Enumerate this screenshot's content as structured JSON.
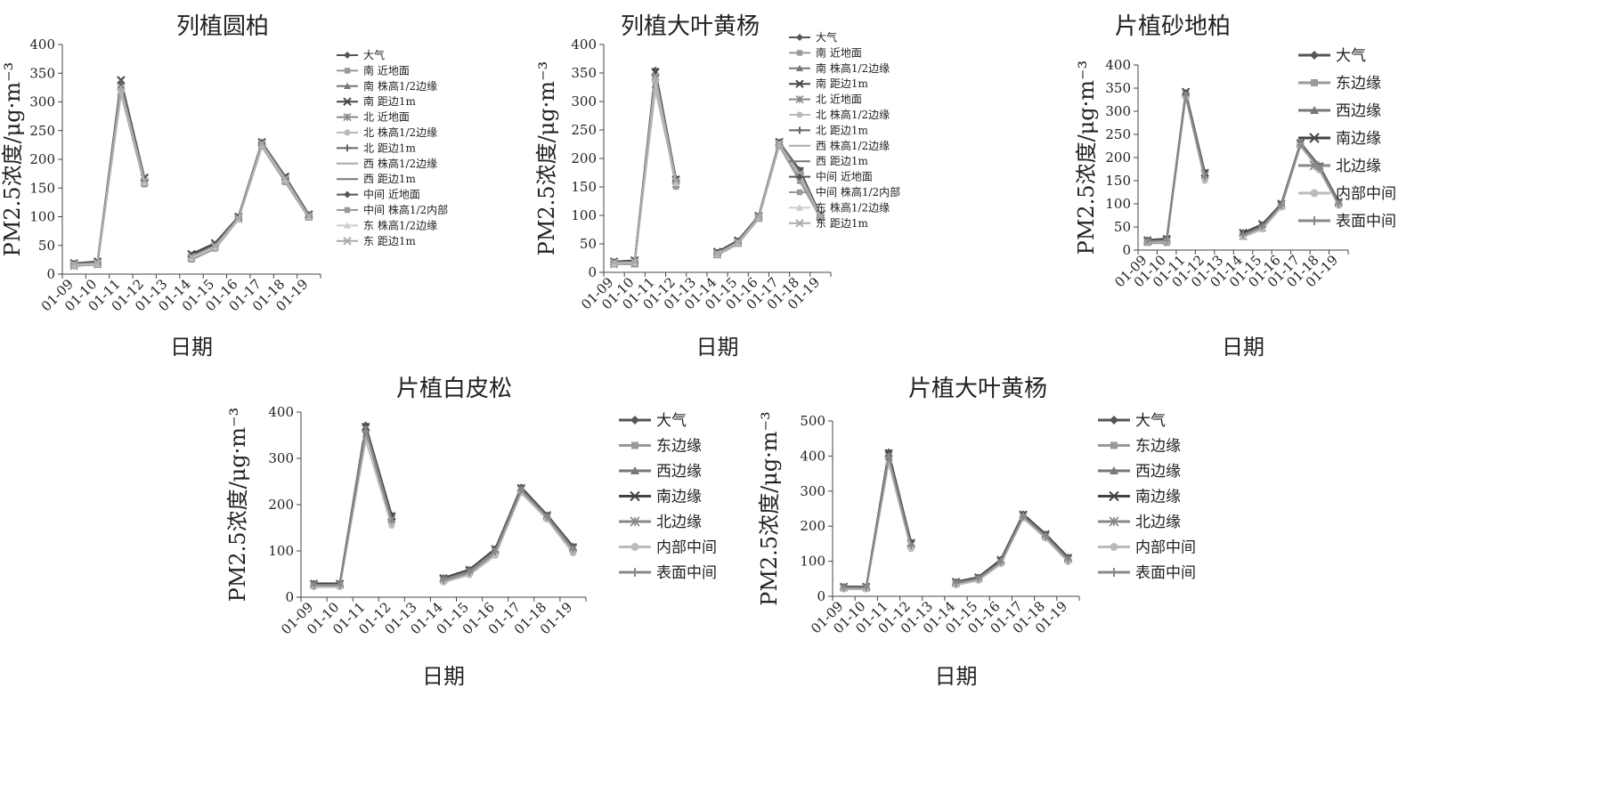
{
  "chart_data": [
    {
      "type": "line",
      "title": "列植圆柏",
      "xlabel": "日期",
      "ylabel": "PM2.5浓度/μg·m⁻³",
      "ylim": [
        0,
        400
      ],
      "yticks": [
        0,
        50,
        100,
        150,
        200,
        250,
        300,
        350,
        400
      ],
      "categories": [
        "01-09",
        "01-10",
        "01-11",
        "01-12",
        "01-13",
        "01-14",
        "01-15",
        "01-16",
        "01-17",
        "01-18",
        "01-19"
      ],
      "legend_position": "right",
      "legend_size": "small",
      "series": [
        {
          "name": "大气",
          "color": "#555555",
          "marker": "diamond",
          "values": [
            18,
            20,
            330,
            165,
            null,
            33,
            52,
            98,
            228,
            168,
            103
          ]
        },
        {
          "name": "南 近地面",
          "color": "#999999",
          "marker": "square",
          "values": [
            15,
            16,
            320,
            158,
            null,
            27,
            45,
            96,
            225,
            162,
            100
          ]
        },
        {
          "name": "南 株高1/2边缘",
          "color": "#777777",
          "marker": "triangle",
          "values": [
            17,
            19,
            328,
            164,
            null,
            32,
            50,
            99,
            229,
            167,
            103
          ]
        },
        {
          "name": "南 距边1m",
          "color": "#444444",
          "marker": "x",
          "values": [
            19,
            22,
            338,
            168,
            null,
            35,
            54,
            100,
            230,
            170,
            104
          ]
        },
        {
          "name": "北 近地面",
          "color": "#888888",
          "marker": "star",
          "values": [
            14,
            17,
            318,
            160,
            null,
            28,
            48,
            96,
            224,
            163,
            100
          ]
        },
        {
          "name": "北 株高1/2边缘",
          "color": "#bbbbbb",
          "marker": "circle",
          "values": [
            16,
            18,
            324,
            162,
            null,
            30,
            49,
            97,
            227,
            166,
            102
          ]
        },
        {
          "name": "北 距边1m",
          "color": "#666666",
          "marker": "plus",
          "values": [
            18,
            20,
            332,
            166,
            null,
            32,
            51,
            99,
            229,
            168,
            103
          ]
        },
        {
          "name": "西 株高1/2边缘",
          "color": "#aaaaaa",
          "marker": "none",
          "values": [
            15,
            17,
            315,
            157,
            null,
            26,
            46,
            95,
            223,
            161,
            99
          ]
        },
        {
          "name": "西 距边1m",
          "color": "#777777",
          "marker": "none",
          "values": [
            16,
            18,
            322,
            161,
            null,
            29,
            48,
            97,
            226,
            165,
            101
          ]
        },
        {
          "name": "中间 近地面",
          "color": "#555555",
          "marker": "diamond",
          "values": [
            17,
            19,
            326,
            163,
            null,
            31,
            50,
            98,
            228,
            167,
            102
          ]
        },
        {
          "name": "中间 株高1/2内部",
          "color": "#999999",
          "marker": "square",
          "values": [
            15,
            17,
            316,
            156,
            null,
            25,
            44,
            95,
            222,
            160,
            98
          ]
        },
        {
          "name": "东 株高1/2边缘",
          "color": "#cccccc",
          "marker": "triangle",
          "values": [
            16,
            18,
            321,
            160,
            null,
            28,
            47,
            96,
            225,
            164,
            100
          ]
        },
        {
          "name": "东 距边1m",
          "color": "#aaaaaa",
          "marker": "x",
          "values": [
            17,
            19,
            325,
            162,
            null,
            30,
            49,
            97,
            227,
            166,
            101
          ]
        }
      ]
    },
    {
      "type": "line",
      "title": "列植大叶黄杨",
      "xlabel": "日期",
      "ylabel": "PM2.5浓度/μg·m⁻³",
      "ylim": [
        0,
        400
      ],
      "yticks": [
        0,
        50,
        100,
        150,
        200,
        250,
        300,
        350,
        400
      ],
      "categories": [
        "01-09",
        "01-10",
        "01-11",
        "01-12",
        "01-13",
        "01-14",
        "01-15",
        "01-16",
        "01-17",
        "01-18",
        "01-19"
      ],
      "legend_position": "right",
      "legend_size": "small",
      "series": [
        {
          "name": "大气",
          "color": "#555555",
          "marker": "diamond",
          "values": [
            18,
            20,
            355,
            165,
            null,
            35,
            55,
            98,
            228,
            180,
            100
          ]
        },
        {
          "name": "南 近地面",
          "color": "#999999",
          "marker": "square",
          "values": [
            15,
            14,
            340,
            150,
            null,
            30,
            50,
            94,
            222,
            160,
            95
          ]
        },
        {
          "name": "南 株高1/2边缘",
          "color": "#777777",
          "marker": "triangle",
          "values": [
            17,
            18,
            350,
            160,
            null,
            33,
            53,
            97,
            227,
            175,
            99
          ]
        },
        {
          "name": "南 距边1m",
          "color": "#444444",
          "marker": "x",
          "values": [
            19,
            21,
            352,
            163,
            null,
            36,
            56,
            99,
            229,
            178,
            101
          ]
        },
        {
          "name": "北 近地面",
          "color": "#888888",
          "marker": "star",
          "values": [
            14,
            15,
            330,
            155,
            null,
            31,
            51,
            95,
            224,
            170,
            96
          ]
        },
        {
          "name": "北 株高1/2边缘",
          "color": "#bbbbbb",
          "marker": "circle",
          "values": [
            16,
            17,
            320,
            158,
            null,
            32,
            52,
            96,
            225,
            172,
            97
          ]
        },
        {
          "name": "北 距边1m",
          "color": "#666666",
          "marker": "plus",
          "values": [
            18,
            19,
            345,
            162,
            null,
            34,
            54,
            98,
            228,
            177,
            99
          ]
        },
        {
          "name": "西 株高1/2边缘",
          "color": "#aaaaaa",
          "marker": "none",
          "values": [
            15,
            16,
            335,
            156,
            null,
            30,
            50,
            95,
            223,
            168,
            96
          ]
        },
        {
          "name": "西 距边1m",
          "color": "#777777",
          "marker": "none",
          "values": [
            16,
            18,
            342,
            159,
            null,
            33,
            53,
            97,
            226,
            174,
            98
          ]
        },
        {
          "name": "中间 近地面",
          "color": "#555555",
          "marker": "diamond",
          "values": [
            17,
            19,
            348,
            161,
            null,
            34,
            54,
            98,
            227,
            176,
            99
          ]
        },
        {
          "name": "中间 株高1/2内部",
          "color": "#999999",
          "marker": "square",
          "values": [
            15,
            16,
            336,
            155,
            null,
            31,
            51,
            95,
            224,
            169,
            96
          ]
        },
        {
          "name": "东 株高1/2边缘",
          "color": "#cccccc",
          "marker": "triangle",
          "values": [
            16,
            17,
            338,
            157,
            null,
            32,
            52,
            96,
            225,
            171,
            97
          ]
        },
        {
          "name": "东 距边1m",
          "color": "#aaaaaa",
          "marker": "x",
          "values": [
            17,
            18,
            344,
            160,
            null,
            33,
            53,
            97,
            226,
            173,
            98
          ]
        }
      ]
    },
    {
      "type": "line",
      "title": "片植砂地柏",
      "xlabel": "日期",
      "ylabel": "PM2.5浓度/μg·m⁻³",
      "ylim": [
        0,
        400
      ],
      "yticks": [
        0,
        50,
        100,
        150,
        200,
        250,
        300,
        350,
        400
      ],
      "categories": [
        "01-09",
        "01-10",
        "01-11",
        "01-12",
        "01-13",
        "01-14",
        "01-15",
        "01-16",
        "01-17",
        "01-18",
        "01-19"
      ],
      "legend_position": "right",
      "legend_size": "large",
      "series": [
        {
          "name": "大气",
          "color": "#555555",
          "marker": "diamond",
          "values": [
            22,
            25,
            340,
            168,
            null,
            38,
            55,
            100,
            232,
            182,
            105
          ]
        },
        {
          "name": "东边缘",
          "color": "#999999",
          "marker": "square",
          "values": [
            15,
            15,
            335,
            160,
            null,
            32,
            50,
            95,
            228,
            175,
            100
          ]
        },
        {
          "name": "西边缘",
          "color": "#777777",
          "marker": "triangle",
          "values": [
            20,
            22,
            338,
            165,
            null,
            36,
            54,
            98,
            230,
            180,
            103
          ]
        },
        {
          "name": "南边缘",
          "color": "#444444",
          "marker": "x",
          "values": [
            21,
            24,
            342,
            167,
            null,
            37,
            56,
            100,
            231,
            181,
            104
          ]
        },
        {
          "name": "北边缘",
          "color": "#888888",
          "marker": "star",
          "values": [
            18,
            20,
            336,
            162,
            null,
            30,
            48,
            96,
            229,
            178,
            101
          ]
        },
        {
          "name": "内部中间",
          "color": "#bbbbbb",
          "marker": "circle",
          "values": [
            17,
            19,
            330,
            150,
            null,
            28,
            45,
            92,
            225,
            172,
            96
          ]
        },
        {
          "name": "表面中间",
          "color": "#888888",
          "marker": "plus",
          "values": [
            19,
            21,
            334,
            158,
            null,
            33,
            51,
            97,
            228,
            177,
            100
          ]
        }
      ]
    },
    {
      "type": "line",
      "title": "片植白皮松",
      "xlabel": "日期",
      "ylabel": "PM2.5浓度/μg·m⁻³",
      "ylim": [
        0,
        400
      ],
      "yticks": [
        0,
        100,
        200,
        300,
        400
      ],
      "categories": [
        "01-09",
        "01-10",
        "01-11",
        "01-12",
        "01-13",
        "01-14",
        "01-15",
        "01-16",
        "01-17",
        "01-18",
        "01-19"
      ],
      "legend_position": "right",
      "legend_size": "large",
      "series": [
        {
          "name": "大气",
          "color": "#555555",
          "marker": "diamond",
          "values": [
            30,
            30,
            372,
            178,
            null,
            42,
            60,
            105,
            238,
            178,
            110
          ]
        },
        {
          "name": "东边缘",
          "color": "#999999",
          "marker": "square",
          "values": [
            25,
            25,
            360,
            160,
            null,
            35,
            52,
            95,
            230,
            170,
            102
          ]
        },
        {
          "name": "西边缘",
          "color": "#777777",
          "marker": "triangle",
          "values": [
            28,
            28,
            366,
            172,
            null,
            40,
            58,
            102,
            235,
            176,
            107
          ]
        },
        {
          "name": "南边缘",
          "color": "#444444",
          "marker": "x",
          "values": [
            29,
            29,
            368,
            175,
            null,
            41,
            59,
            104,
            236,
            177,
            108
          ]
        },
        {
          "name": "北边缘",
          "color": "#888888",
          "marker": "star",
          "values": [
            27,
            27,
            364,
            168,
            null,
            38,
            56,
            100,
            233,
            174,
            105
          ]
        },
        {
          "name": "内部中间",
          "color": "#bbbbbb",
          "marker": "circle",
          "values": [
            22,
            22,
            340,
            155,
            null,
            32,
            48,
            90,
            225,
            168,
            95
          ]
        },
        {
          "name": "表面中间",
          "color": "#888888",
          "marker": "plus",
          "values": [
            26,
            26,
            358,
            165,
            null,
            37,
            54,
            98,
            232,
            173,
            103
          ]
        }
      ]
    },
    {
      "type": "line",
      "title": "片植大叶黄杨",
      "xlabel": "日期",
      "ylabel": "PM2.5浓度/μg·m⁻³",
      "ylim": [
        0,
        500
      ],
      "yticks": [
        0,
        100,
        200,
        300,
        400,
        500
      ],
      "categories": [
        "01-09",
        "01-10",
        "01-11",
        "01-12",
        "01-13",
        "01-14",
        "01-15",
        "01-16",
        "01-17",
        "01-18",
        "01-19"
      ],
      "legend_position": "right",
      "legend_size": "large",
      "series": [
        {
          "name": "大气",
          "color": "#555555",
          "marker": "diamond",
          "values": [
            28,
            28,
            412,
            155,
            null,
            42,
            55,
            105,
            235,
            178,
            112
          ]
        },
        {
          "name": "东边缘",
          "color": "#999999",
          "marker": "square",
          "values": [
            22,
            22,
            395,
            140,
            null,
            35,
            48,
            95,
            225,
            168,
            102
          ]
        },
        {
          "name": "西边缘",
          "color": "#777777",
          "marker": "triangle",
          "values": [
            26,
            26,
            405,
            150,
            null,
            40,
            53,
            102,
            232,
            175,
            109
          ]
        },
        {
          "name": "南边缘",
          "color": "#444444",
          "marker": "x",
          "values": [
            27,
            27,
            408,
            152,
            null,
            41,
            54,
            104,
            233,
            177,
            110
          ]
        },
        {
          "name": "北边缘",
          "color": "#888888",
          "marker": "star",
          "values": [
            25,
            25,
            400,
            146,
            null,
            38,
            51,
            99,
            229,
            172,
            106
          ]
        },
        {
          "name": "内部中间",
          "color": "#bbbbbb",
          "marker": "circle",
          "values": [
            20,
            20,
            380,
            135,
            null,
            32,
            45,
            92,
            222,
            165,
            98
          ]
        },
        {
          "name": "表面中间",
          "color": "#888888",
          "marker": "plus",
          "values": [
            24,
            24,
            398,
            145,
            null,
            37,
            50,
            98,
            228,
            171,
            104
          ]
        }
      ]
    }
  ]
}
